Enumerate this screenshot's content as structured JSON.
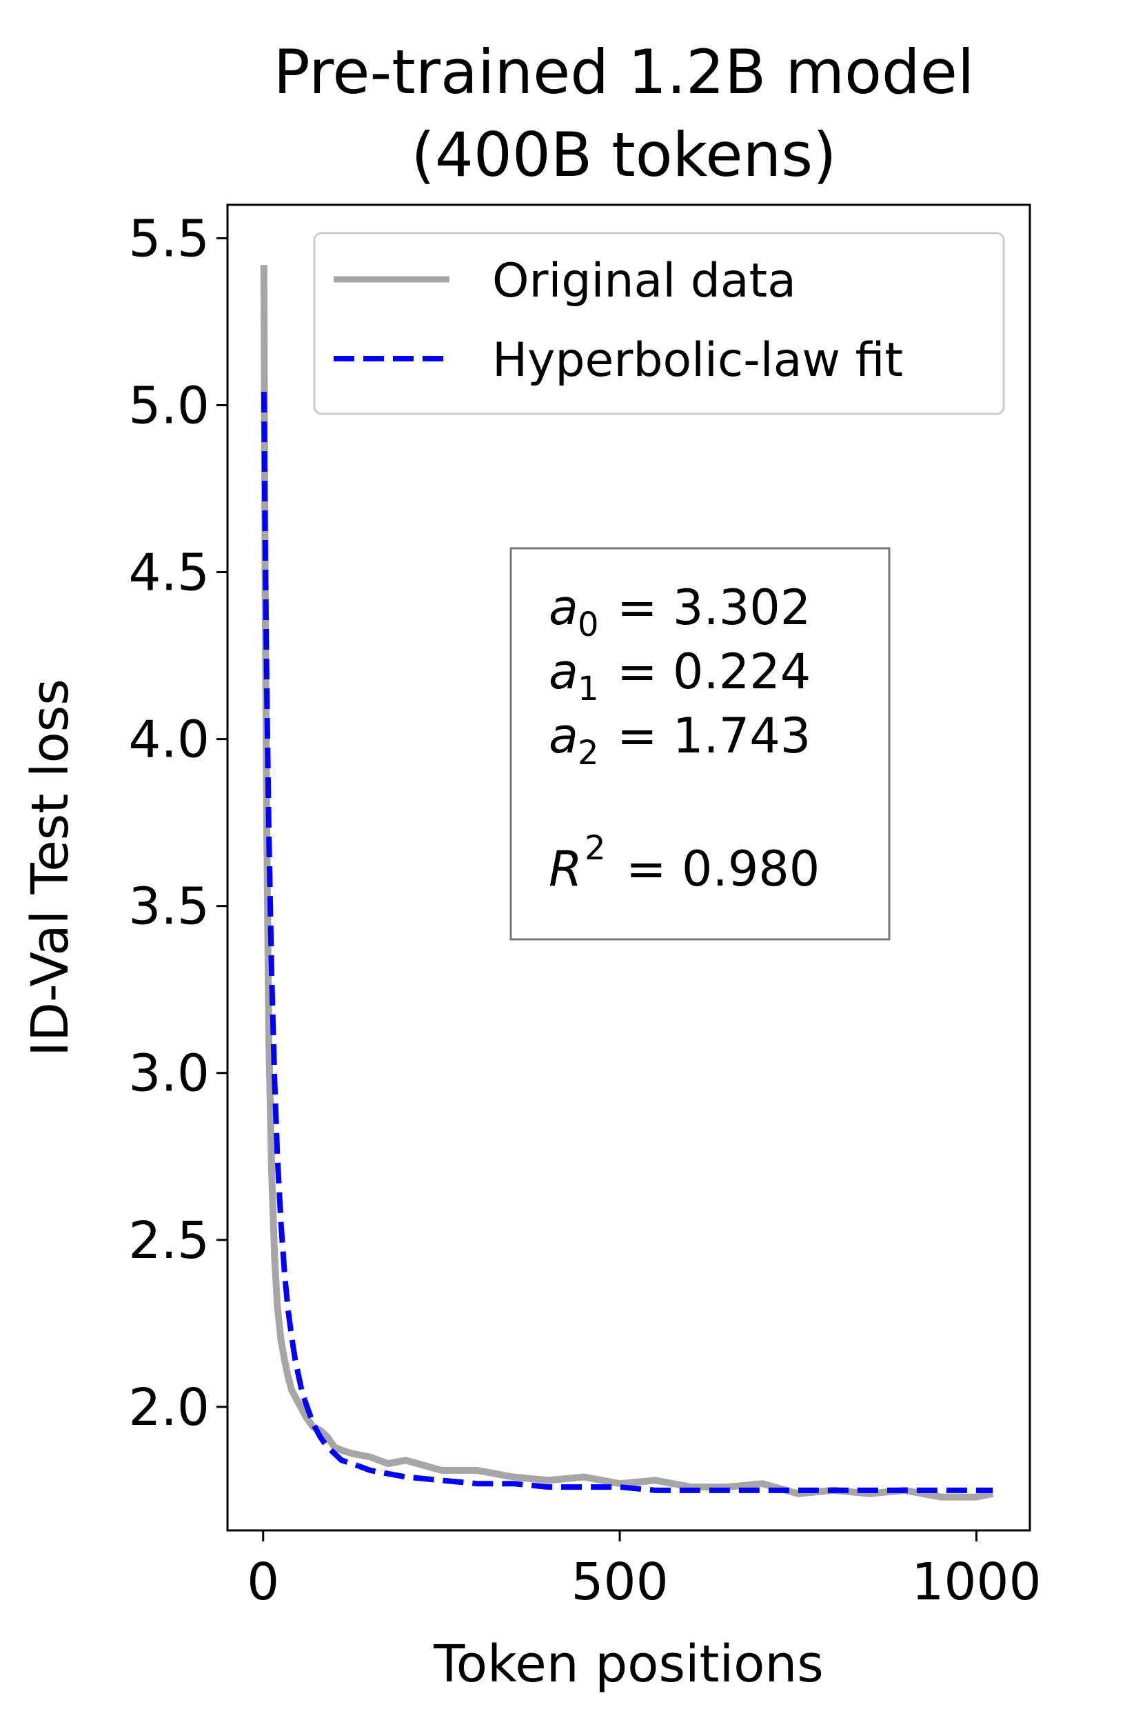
{
  "chart_data": {
    "type": "line",
    "title_line1": "Pre-trained 1.2B model",
    "title_line2": "(400B tokens)",
    "xlabel": "Token positions",
    "ylabel": "ID-Val Test loss",
    "xlim": [
      -50,
      1075
    ],
    "ylim": [
      1.63,
      5.6
    ],
    "x_ticks": [
      0,
      500,
      1000
    ],
    "x_tick_labels": [
      "0",
      "500",
      "1000"
    ],
    "y_ticks": [
      2.0,
      2.5,
      3.0,
      3.5,
      4.0,
      4.5,
      5.0,
      5.5
    ],
    "y_tick_labels": [
      "2.0",
      "2.5",
      "3.0",
      "3.5",
      "4.0",
      "4.5",
      "5.0",
      "5.5"
    ],
    "legend_position": "top-right",
    "series": [
      {
        "name": "Original data",
        "color": "#a6a6a6",
        "style": "solid",
        "x": [
          1,
          2,
          3,
          5,
          8,
          12,
          16,
          20,
          25,
          30,
          35,
          40,
          45,
          50,
          55,
          60,
          70,
          80,
          90,
          100,
          110,
          125,
          150,
          175,
          200,
          250,
          300,
          350,
          400,
          450,
          500,
          550,
          600,
          650,
          700,
          750,
          800,
          850,
          900,
          950,
          1000,
          1023
        ],
        "y": [
          5.42,
          4.9,
          4.4,
          3.75,
          3.1,
          2.7,
          2.45,
          2.3,
          2.2,
          2.14,
          2.09,
          2.05,
          2.03,
          2.01,
          1.99,
          1.97,
          1.94,
          1.93,
          1.91,
          1.88,
          1.87,
          1.86,
          1.85,
          1.83,
          1.84,
          1.81,
          1.81,
          1.79,
          1.78,
          1.79,
          1.77,
          1.78,
          1.76,
          1.76,
          1.77,
          1.74,
          1.75,
          1.74,
          1.75,
          1.73,
          1.73,
          1.74
        ]
      },
      {
        "name": "Hyperbolic-law fit",
        "color": "#0000ff",
        "style": "dashed",
        "x": [
          1,
          2,
          3,
          5,
          8,
          12,
          16,
          20,
          25,
          30,
          35,
          40,
          45,
          50,
          55,
          60,
          70,
          80,
          90,
          100,
          110,
          125,
          150,
          175,
          200,
          250,
          300,
          350,
          400,
          450,
          500,
          550,
          600,
          650,
          700,
          750,
          800,
          850,
          900,
          950,
          1000,
          1023
        ],
        "y": [
          5.04,
          4.79,
          4.56,
          4.17,
          3.72,
          3.29,
          2.98,
          2.75,
          2.55,
          2.4,
          2.29,
          2.21,
          2.14,
          2.09,
          2.04,
          2.01,
          1.95,
          1.91,
          1.88,
          1.86,
          1.84,
          1.83,
          1.81,
          1.8,
          1.79,
          1.78,
          1.77,
          1.77,
          1.76,
          1.76,
          1.76,
          1.75,
          1.75,
          1.75,
          1.75,
          1.75,
          1.75,
          1.75,
          1.75,
          1.75,
          1.75,
          1.75
        ]
      }
    ],
    "annotation": {
      "a0_sym": "a",
      "a0_sub": "0",
      "a0_val": "= 3.302",
      "a1_sym": "a",
      "a1_sub": "1",
      "a1_val": "= 0.224",
      "a2_sym": "a",
      "a2_sub": "2",
      "a2_val": "= 1.743",
      "r2_sym": "R",
      "r2_sup": "2",
      "r2_val": "= 0.980"
    }
  }
}
